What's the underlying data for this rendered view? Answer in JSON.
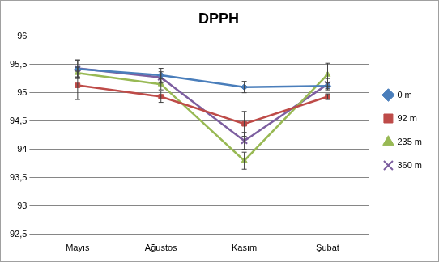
{
  "chart_data": {
    "type": "line",
    "title": "DPPH",
    "categories": [
      "Mayıs",
      "Ağustos",
      "Kasım",
      "Şubat"
    ],
    "series": [
      {
        "name": "0 m",
        "color": "#4a7ebb",
        "marker": "diamond",
        "values": [
          95.42,
          95.31,
          95.1,
          95.12
        ],
        "errors": [
          0.15,
          0.12,
          0.1,
          0.05
        ]
      },
      {
        "name": "92 m",
        "color": "#be4b48",
        "marker": "square",
        "values": [
          95.13,
          94.93,
          94.45,
          94.93
        ],
        "errors": [
          0.25,
          0.1,
          0.22,
          0.05
        ]
      },
      {
        "name": "235 m",
        "color": "#98b954",
        "marker": "triangle",
        "values": [
          95.35,
          95.15,
          93.8,
          95.32
        ],
        "errors": [
          0.1,
          0.1,
          0.15,
          0.2
        ]
      },
      {
        "name": "360 m",
        "color": "#7d5fa0",
        "marker": "x",
        "values": [
          95.43,
          95.27,
          94.15,
          95.15
        ],
        "errors": [
          0.15,
          0.1,
          0.15,
          0.1
        ]
      }
    ],
    "ylim": [
      92.5,
      96
    ],
    "yticks": [
      {
        "value": 92.5,
        "label": "92,5"
      },
      93,
      {
        "value": 93.5,
        "label": "93,5"
      },
      94,
      {
        "value": 94.5,
        "label": "94,5"
      },
      95,
      {
        "value": 95.5,
        "label": "95,5"
      },
      96
    ],
    "grid": true,
    "legend": "right"
  }
}
